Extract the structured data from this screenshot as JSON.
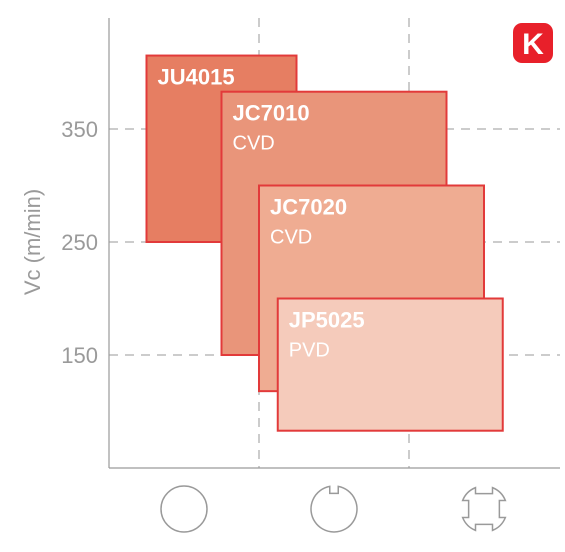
{
  "chart_data": {
    "type": "range-bar",
    "ylabel": "Vc (m/min)",
    "yticks": [
      150,
      250,
      350
    ],
    "ylim": [
      50,
      450
    ],
    "grid": "dashed",
    "categories": [
      {
        "name": "continuous-cut",
        "icon": "solid-circle-icon"
      },
      {
        "name": "light-interrupted-cut",
        "icon": "notched-circle-icon"
      },
      {
        "name": "heavy-interrupted-cut",
        "icon": "cross-notched-circle-icon"
      }
    ],
    "grades": [
      {
        "name": "JU4015",
        "coating": "",
        "x_start": 0.25,
        "x_end": 1.25,
        "vc_min": 250,
        "vc_max": 415,
        "color": "#e67e62"
      },
      {
        "name": "JC7010",
        "coating": "CVD",
        "x_start": 0.75,
        "x_end": 2.25,
        "vc_min": 150,
        "vc_max": 383,
        "color": "#e9957a"
      },
      {
        "name": "JC7020",
        "coating": "CVD",
        "x_start": 1.0,
        "x_end": 2.5,
        "vc_min": 118,
        "vc_max": 300,
        "color": "#efac92"
      },
      {
        "name": "JP5025",
        "coating": "PVD",
        "x_start": 1.125,
        "x_end": 2.625,
        "vc_min": 83,
        "vc_max": 200,
        "color": "#f5cbbb"
      }
    ]
  },
  "badge": {
    "letter": "K",
    "color": "#e8202a"
  },
  "colors": {
    "border": "#e23a3a",
    "grid": "#9a9a9a",
    "axis": "#9a9a9a",
    "icon": "#9a9a9a"
  }
}
